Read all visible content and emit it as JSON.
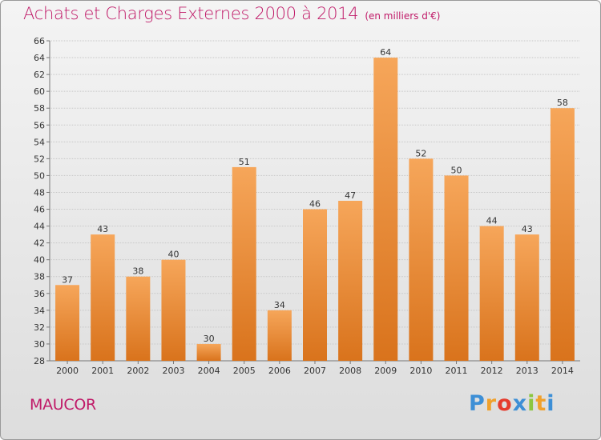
{
  "header": {
    "title": "Achats et Charges Externes 2000 à 2014",
    "unit": "(en milliers d'€)"
  },
  "footer": {
    "commune": "MAUCOR",
    "logo_letters": [
      "P",
      "r",
      "o",
      "x",
      "i",
      "t",
      "i"
    ],
    "logo_colors": [
      "#3d8fd6",
      "#f0a12c",
      "#e53c2e",
      "#3d8fd6",
      "#8cc63f",
      "#f0a12c",
      "#3d8fd6"
    ]
  },
  "colors": {
    "title": "#c01a68",
    "bar_light": "#f6a65a",
    "bar_dark": "#d9731c",
    "grid": "#c8c8c8"
  },
  "chart_data": {
    "type": "bar",
    "title": "Achats et Charges Externes 2000 à 2014",
    "subtitle": "(en milliers d'€)",
    "xlabel": "",
    "ylabel": "",
    "categories": [
      "2000",
      "2001",
      "2002",
      "2003",
      "2004",
      "2005",
      "2006",
      "2007",
      "2008",
      "2009",
      "2010",
      "2011",
      "2012",
      "2013",
      "2014"
    ],
    "values": [
      37,
      43,
      38,
      40,
      30,
      51,
      34,
      46,
      47,
      64,
      52,
      50,
      44,
      43,
      58
    ],
    "ylim": [
      28,
      66
    ],
    "ytick_step": 2,
    "grid": true
  }
}
